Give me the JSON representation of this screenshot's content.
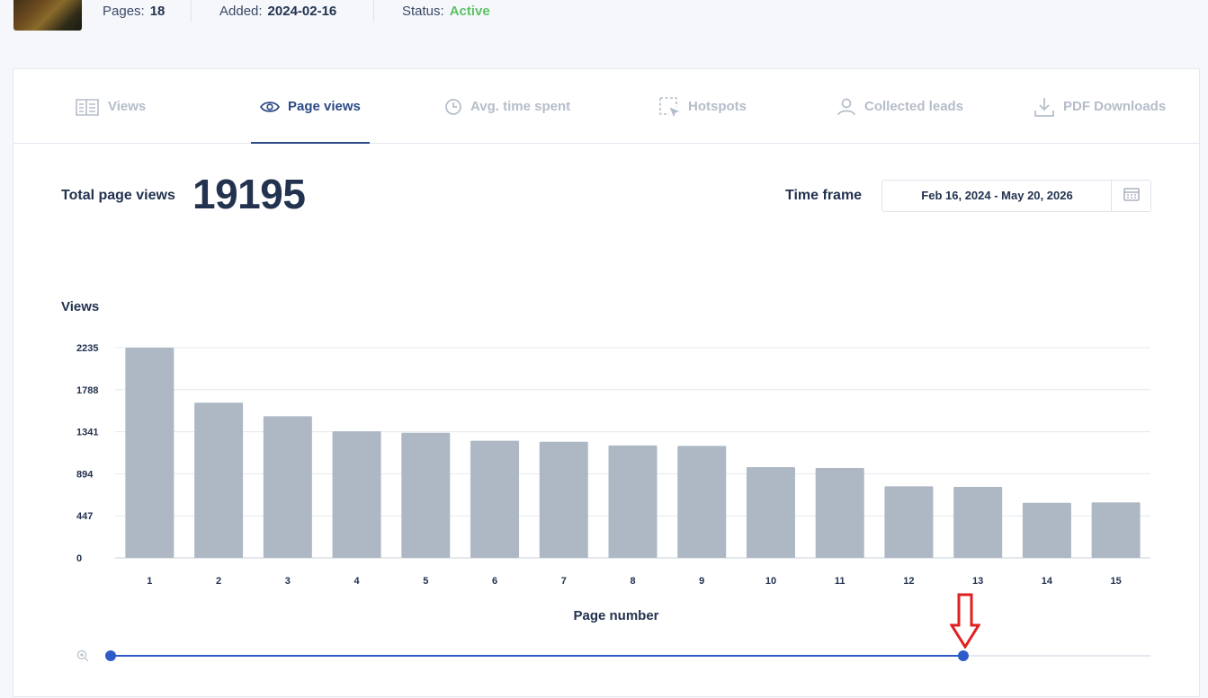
{
  "meta": {
    "pages_label": "Pages:",
    "pages_value": "18",
    "added_label": "Added:",
    "added_value": "2024-02-16",
    "status_label": "Status:",
    "status_value": "Active",
    "status_color": "#5cc265"
  },
  "tabs": [
    {
      "label": "Views",
      "icon": "views-book-icon",
      "active": false
    },
    {
      "label": "Page views",
      "icon": "eye-icon",
      "active": true
    },
    {
      "label": "Avg. time spent",
      "icon": "clock-icon",
      "active": false
    },
    {
      "label": "Hotspots",
      "icon": "hotspot-cursor-icon",
      "active": false
    },
    {
      "label": "Collected leads",
      "icon": "user-icon",
      "active": false
    },
    {
      "label": "PDF Downloads",
      "icon": "download-icon",
      "active": false
    }
  ],
  "summary": {
    "total_label": "Total page views",
    "total_value": "19195",
    "timeframe_label": "Time frame",
    "timeframe_value": "Feb 16, 2024 - May 20, 2026"
  },
  "colors": {
    "accent": "#2c4a86",
    "bar": "#adb8c4",
    "slider": "#2f5bc9",
    "annotation_arrow": "#e02020"
  },
  "chart_data": {
    "type": "bar",
    "ylabel": "Views",
    "xlabel": "Page number",
    "categories": [
      "1",
      "2",
      "3",
      "4",
      "5",
      "6",
      "7",
      "8",
      "9",
      "10",
      "11",
      "12",
      "13",
      "14",
      "15"
    ],
    "values": [
      2235,
      1650,
      1505,
      1345,
      1330,
      1245,
      1235,
      1195,
      1190,
      965,
      955,
      760,
      755,
      585,
      590
    ],
    "yticks": [
      "2235",
      "1788",
      "1341",
      "894",
      "447",
      "0"
    ],
    "ylim": [
      0,
      2235
    ],
    "grid": true
  },
  "slider": {
    "range_start_fraction": 0.0,
    "range_end_fraction": 0.82
  }
}
